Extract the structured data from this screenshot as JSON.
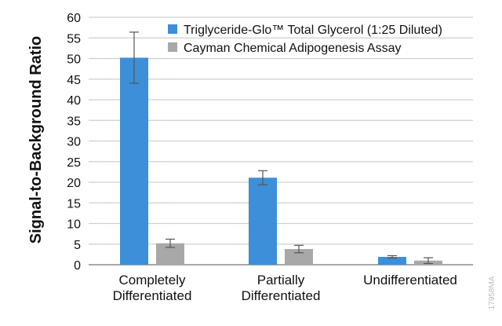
{
  "chart_data": {
    "type": "bar",
    "categories": [
      "Completely\nDifferentiated",
      "Partially\nDifferentiated",
      "Undifferentiated"
    ],
    "series": [
      {
        "name": "Triglyceride-Glo™ Total Glycerol (1:25 Diluted)",
        "values": [
          50.2,
          21.1,
          1.9
        ],
        "error": [
          6.2,
          1.7,
          0.3
        ],
        "color": "#3c8fd8"
      },
      {
        "name": "Cayman Chemical Adipogenesis Assay",
        "values": [
          5.2,
          3.8,
          1.0
        ],
        "error": [
          1.0,
          0.9,
          0.7
        ],
        "color": "#a8a8a8"
      }
    ],
    "ylabel": "Signal-to-Background Ratio",
    "xlabel": "",
    "ylim": [
      0,
      60
    ],
    "yticks": [
      0,
      5,
      10,
      15,
      20,
      25,
      30,
      35,
      40,
      45,
      50,
      55,
      60
    ],
    "grid": true,
    "legend_position": "top-right",
    "title": "",
    "watermark": "17958MA"
  }
}
